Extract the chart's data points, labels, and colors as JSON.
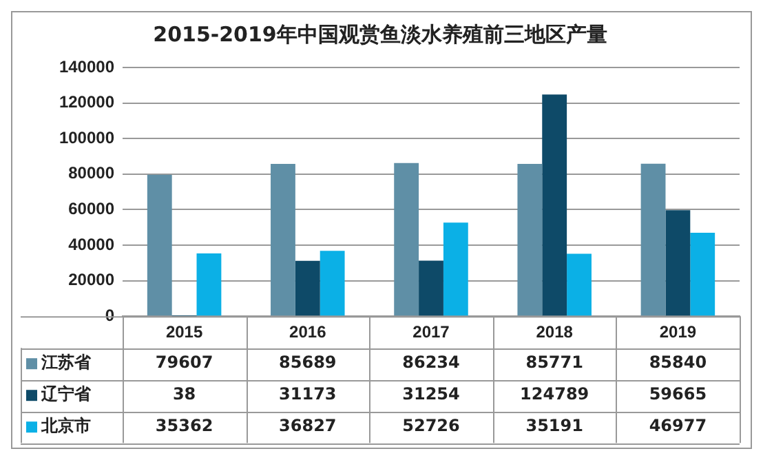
{
  "chart_data": {
    "type": "bar",
    "title": "2015-2019年中国观赏鱼淡水养殖前三地区产量",
    "categories": [
      "2015",
      "2016",
      "2017",
      "2018",
      "2019"
    ],
    "series": [
      {
        "name": "江苏省",
        "color": "#5f8fa6",
        "values": [
          79607,
          85689,
          86234,
          85771,
          85840
        ]
      },
      {
        "name": "辽宁省",
        "color": "#0e4a68",
        "values": [
          38,
          31173,
          31254,
          124789,
          59665
        ]
      },
      {
        "name": "北京市",
        "color": "#0bb0e6",
        "values": [
          35362,
          36827,
          52726,
          35191,
          46977
        ]
      }
    ],
    "ylim": [
      0,
      140000
    ],
    "yticks": [
      0,
      20000,
      40000,
      60000,
      80000,
      100000,
      120000,
      140000
    ],
    "grid": "y",
    "data_labels": true,
    "legend": "bottom"
  }
}
